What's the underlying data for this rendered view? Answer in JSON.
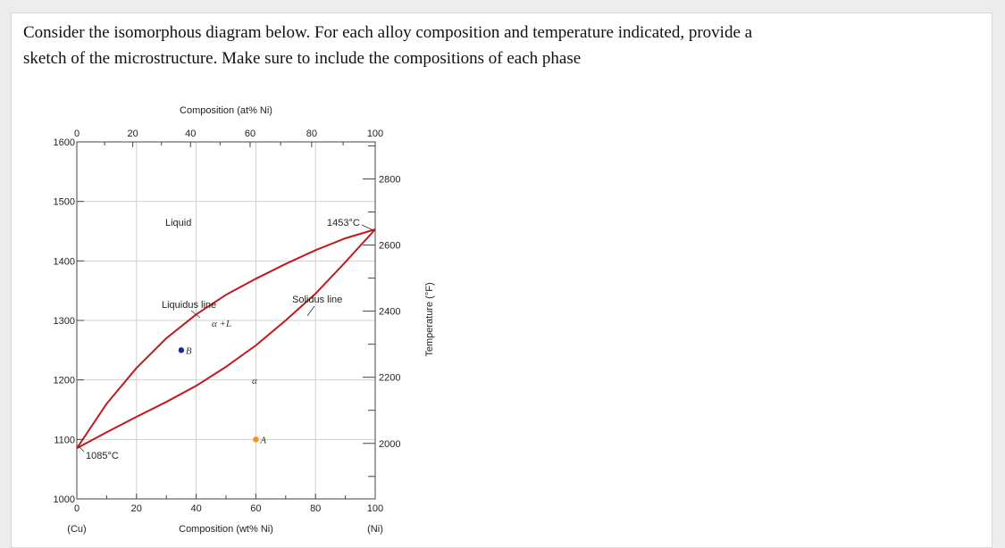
{
  "question": {
    "line1": "Consider the isomorphous diagram below. For each alloy composition and temperature indicated, provide a",
    "line2": "sketch of the microstructure. Make sure to include the compositions of each phase"
  },
  "chart_data": {
    "type": "line",
    "top_axis_title": "Composition (at% Ni)",
    "bottom_axis_title": "Composition (wt% Ni)",
    "right_axis_title": "Temperature (°F)",
    "x_wt_ticks": [
      "0",
      "20",
      "40",
      "60",
      "80",
      "100"
    ],
    "x_at_ticks": [
      "0",
      "20",
      "40",
      "60",
      "80",
      "100"
    ],
    "x_end_labels": {
      "left": "(Cu)",
      "right": "(Ni)"
    },
    "y_c_ticks": [
      "1000",
      "1100",
      "1200",
      "1300",
      "1400",
      "1500",
      "1600"
    ],
    "y_f_ticks": [
      "2000",
      "2200",
      "2400",
      "2600",
      "2800"
    ],
    "xlim": [
      0,
      100
    ],
    "ylim": [
      1000,
      1600
    ],
    "liquidus": [
      [
        0,
        1085
      ],
      [
        10,
        1160
      ],
      [
        20,
        1220
      ],
      [
        30,
        1270
      ],
      [
        40,
        1310
      ],
      [
        50,
        1343
      ],
      [
        60,
        1370
      ],
      [
        70,
        1395
      ],
      [
        80,
        1418
      ],
      [
        90,
        1438
      ],
      [
        100,
        1453
      ]
    ],
    "solidus": [
      [
        0,
        1085
      ],
      [
        10,
        1112
      ],
      [
        20,
        1138
      ],
      [
        30,
        1163
      ],
      [
        40,
        1190
      ],
      [
        50,
        1222
      ],
      [
        60,
        1258
      ],
      [
        70,
        1300
      ],
      [
        80,
        1345
      ],
      [
        90,
        1398
      ],
      [
        100,
        1453
      ]
    ],
    "curve_color": "#c0191e",
    "labels": {
      "liquid": "Liquid",
      "liquidus_line": "Liquidus line",
      "solidus_line": "Solidus line",
      "alpha_l": "α +L",
      "alpha": "α",
      "ni_melt": "1453°C",
      "cu_melt": "1085°C"
    },
    "points": [
      {
        "name": "A",
        "wt_ni": 60,
        "temp_c": 1100,
        "color": "#f5901e"
      },
      {
        "name": "B",
        "wt_ni": 35,
        "temp_c": 1250,
        "color": "#1a2a8c"
      }
    ]
  }
}
